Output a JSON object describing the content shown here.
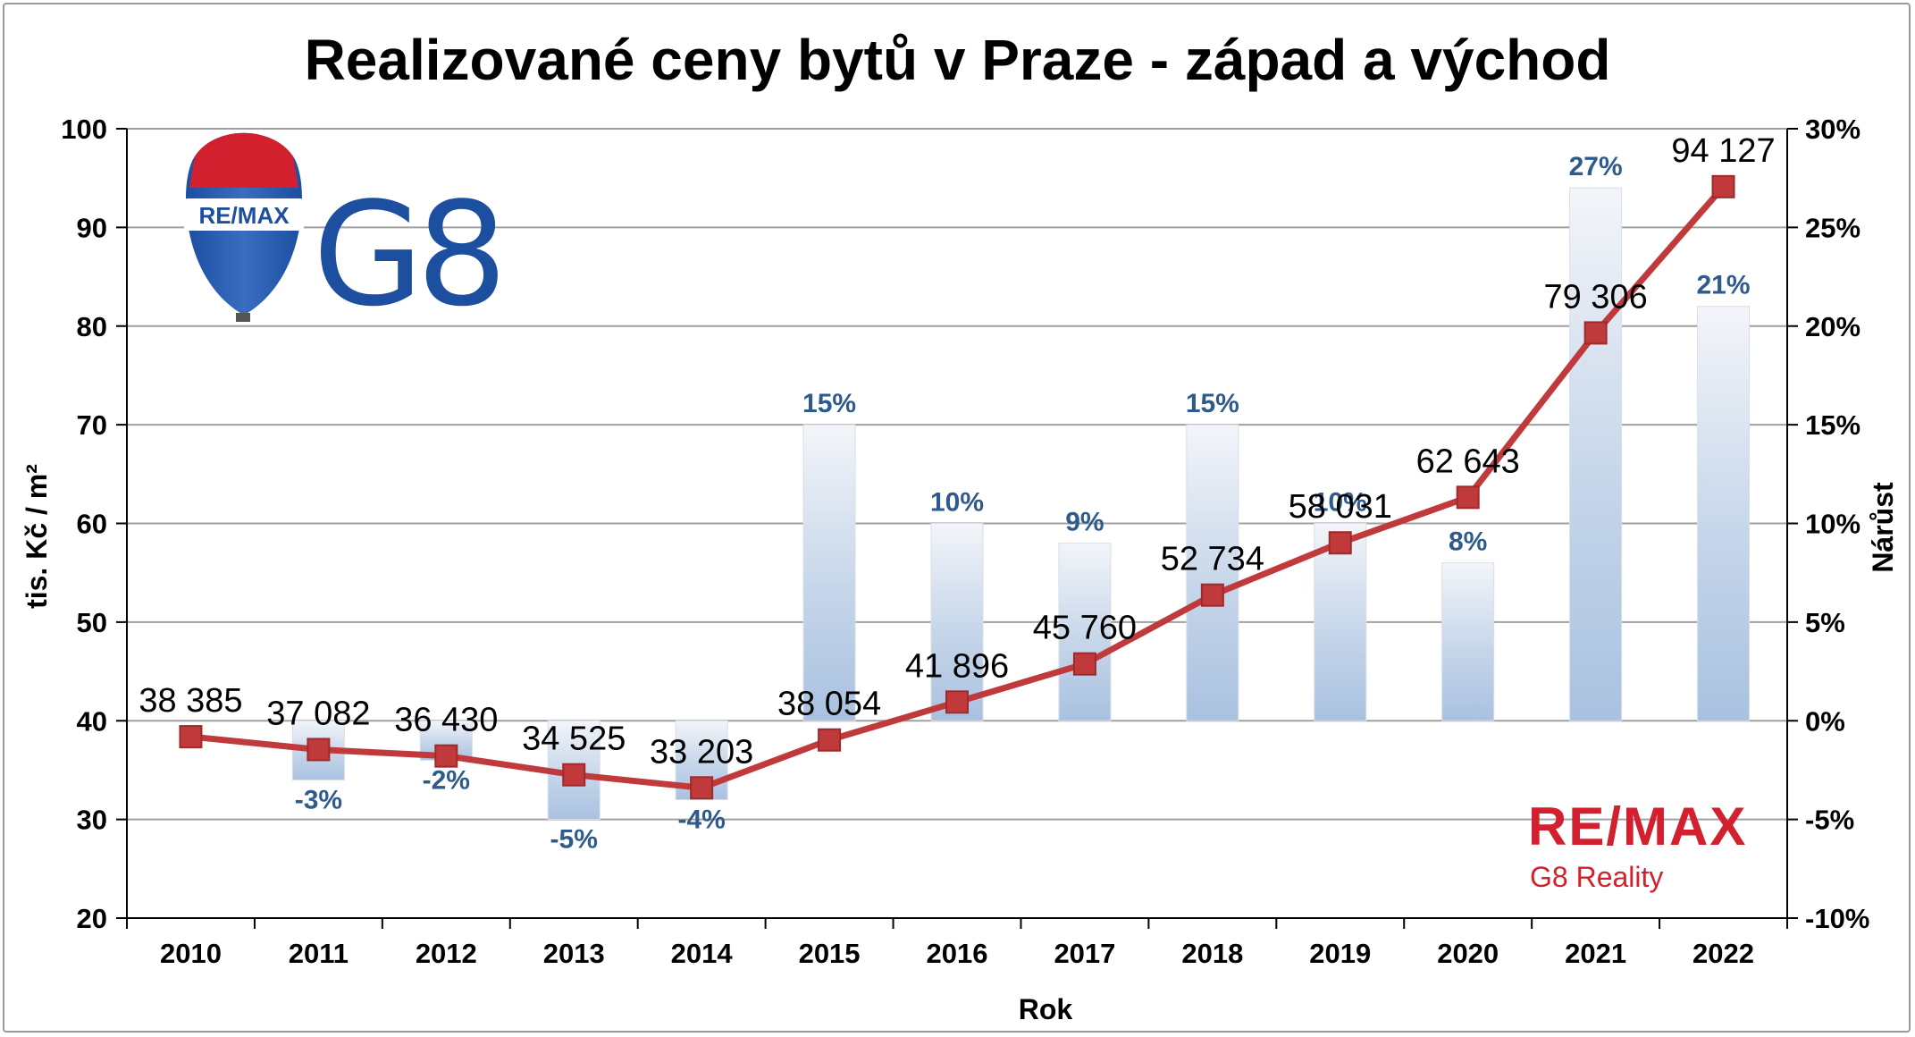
{
  "chart_data": {
    "type": "bar+line",
    "title": "Realizované ceny bytů v Praze - západ a východ",
    "xlabel": "Rok",
    "ylabel_left": "tis. Kč / m²",
    "ylabel_right": "Nárůst",
    "categories": [
      "2010",
      "2011",
      "2012",
      "2013",
      "2014",
      "2015",
      "2016",
      "2017",
      "2018",
      "2019",
      "2020",
      "2021",
      "2022"
    ],
    "ylim_left": [
      20,
      100
    ],
    "yticks_left": [
      "20",
      "30",
      "40",
      "50",
      "60",
      "70",
      "80",
      "90",
      "100"
    ],
    "ylim_right": [
      -10,
      30
    ],
    "yticks_right": [
      "-10%",
      "-5%",
      "0%",
      "5%",
      "10%",
      "15%",
      "20%",
      "25%",
      "30%"
    ],
    "grid": true,
    "series": [
      {
        "kind": "line",
        "color": "#c0393b",
        "values": [
          38.385,
          37.082,
          36.43,
          34.525,
          33.203,
          38.054,
          41.896,
          45.76,
          52.734,
          58.031,
          62.643,
          79.306,
          94.127
        ],
        "labels": [
          "38 385",
          "37 082",
          "36 430",
          "34 525",
          "33 203",
          "38 054",
          "41 896",
          "45 760",
          "52 734",
          "58 031",
          "62 643",
          "79 306",
          "94 127"
        ]
      },
      {
        "kind": "bar",
        "color": "#a9c1e0",
        "values": [
          null,
          -3,
          -2,
          -5,
          -4,
          15,
          10,
          9,
          15,
          10,
          8,
          27,
          21
        ],
        "labels": [
          "",
          "-3%",
          "-2%",
          "-5%",
          "-4%",
          "15%",
          "10%",
          "9%",
          "15%",
          "10%",
          "8%",
          "27%",
          "21%"
        ]
      }
    ]
  },
  "logos": {
    "top_left_balloon": "RE/MAX",
    "top_left_mark": "G8",
    "bottom_right_brand": "RE/MAX",
    "bottom_right_sub": "G8 Reality",
    "brand_red": "#d3202f",
    "brand_blue": "#1c4fa0"
  }
}
